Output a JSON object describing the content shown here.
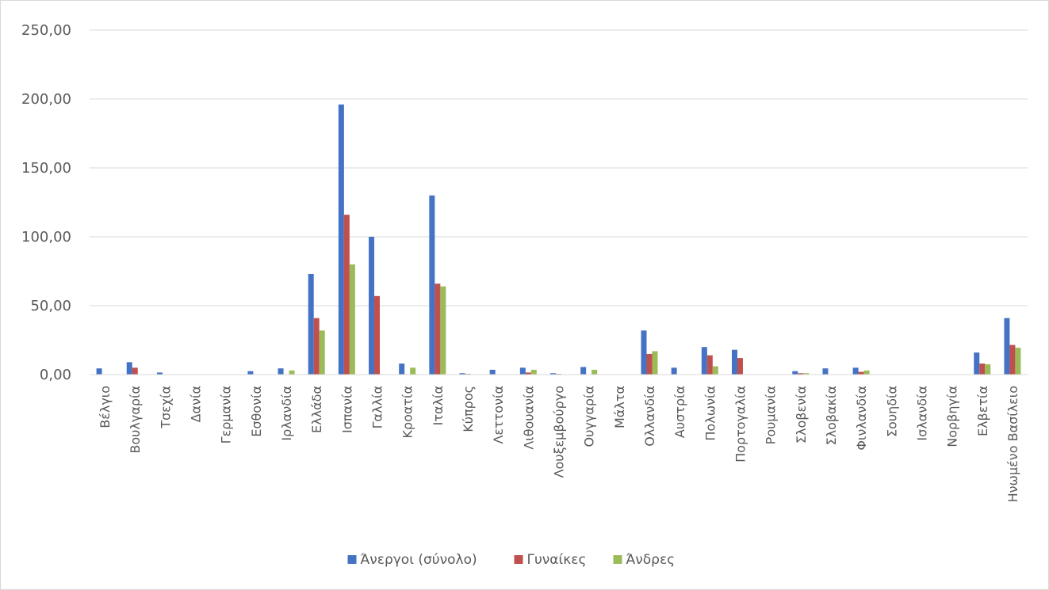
{
  "chart_data": {
    "type": "bar",
    "title": "",
    "xlabel": "",
    "ylabel": "",
    "ylim": [
      0,
      250
    ],
    "yticks": [
      "0,00",
      "50,00",
      "100,00",
      "150,00",
      "200,00",
      "250,00"
    ],
    "grid": true,
    "legend_position": "bottom",
    "categories": [
      "Βέλγιο",
      "Βουλγαρία",
      "Τσεχία",
      "Δανία",
      "Γερμανία",
      "Εσθονία",
      "Ιρλανδία",
      "Ελλάδα",
      "Ισπανία",
      "Γαλλία",
      "Κροατία",
      "Ιταλία",
      "Κύπρος",
      "Λεττονία",
      "Λιθουανία",
      "Λουξεμβούργο",
      "Ουγγαρία",
      "Μάλτα",
      "Ολλανδία",
      "Αυστρία",
      "Πολωνία",
      "Πορτογαλία",
      "Ρουμανία",
      "Σλοβενία",
      "Σλοβακία",
      "Φινλανδία",
      "Σουηδία",
      "Ισλανδία",
      "Νορβηγία",
      "Ελβετία",
      "Ηνωμένο Βασίλειο"
    ],
    "series": [
      {
        "name": "Άνεργοι (σύνολο)",
        "color": "#4472c4",
        "values": [
          4.5,
          9,
          1.5,
          0,
          0,
          2.5,
          4.5,
          73,
          196,
          100,
          8,
          130,
          1,
          3.5,
          5,
          1,
          5.5,
          0,
          32,
          5,
          20,
          18,
          0,
          2.5,
          4.5,
          5,
          0,
          0,
          0,
          16,
          41
        ]
      },
      {
        "name": "Γυναίκες",
        "color": "#c0504d",
        "values": [
          0,
          5,
          0,
          0,
          0,
          0,
          0,
          41,
          116,
          57,
          0,
          66,
          0.5,
          0,
          1.5,
          0.5,
          0,
          0,
          15,
          0,
          14,
          12,
          0,
          1,
          0,
          2,
          0,
          0,
          0,
          8,
          21.5
        ]
      },
      {
        "name": "Άνδρες",
        "color": "#9bbb59",
        "values": [
          0,
          0,
          0,
          0,
          0,
          0,
          3,
          32,
          80,
          0,
          5,
          64,
          0,
          0,
          3.5,
          0,
          3.5,
          0,
          17,
          0,
          6,
          0,
          0,
          1,
          0,
          3,
          0,
          0,
          0,
          7.5,
          19.5
        ]
      }
    ]
  }
}
